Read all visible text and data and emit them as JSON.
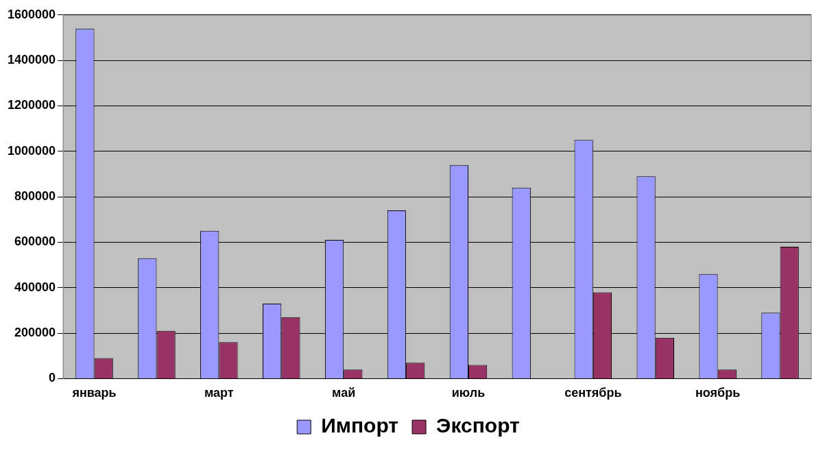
{
  "chart_data": {
    "type": "bar",
    "categories": [
      "январь",
      null,
      "март",
      null,
      "май",
      null,
      "июль",
      null,
      "сентябрь",
      null,
      "ноябрь",
      null
    ],
    "series": [
      {
        "name": "Импорт",
        "color": "#9999ff",
        "values": [
          1540000,
          530000,
          650000,
          330000,
          610000,
          740000,
          940000,
          840000,
          1050000,
          890000,
          460000,
          290000
        ]
      },
      {
        "name": "Экспорт",
        "color": "#993366",
        "values": [
          90000,
          210000,
          160000,
          270000,
          40000,
          70000,
          60000,
          null,
          380000,
          180000,
          40000,
          580000
        ]
      }
    ],
    "ylim": [
      0,
      1600000
    ],
    "yticks": [
      0,
      200000,
      400000,
      600000,
      800000,
      1000000,
      1200000,
      1400000,
      1600000
    ],
    "grid": "y",
    "legend": "bottom"
  }
}
